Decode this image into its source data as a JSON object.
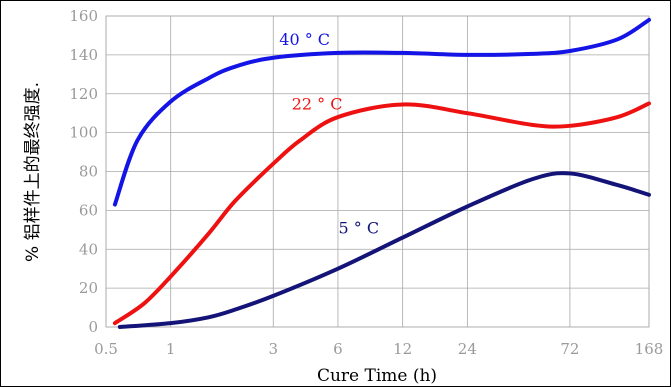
{
  "chart_data": {
    "type": "line",
    "title": "",
    "xlabel": "Cure Time (h)",
    "ylabel": "% 铝样件上的最终强度.",
    "x_scale": "log",
    "xlim": [
      0.5,
      168
    ],
    "ylim": [
      0,
      160
    ],
    "x_ticks": [
      {
        "value": 0.5,
        "label": "0.5"
      },
      {
        "value": 1,
        "label": "1"
      },
      {
        "value": 3,
        "label": "3"
      },
      {
        "value": 6,
        "label": "6"
      },
      {
        "value": 12,
        "label": "12"
      },
      {
        "value": 24,
        "label": "24"
      },
      {
        "value": 72,
        "label": "72"
      },
      {
        "value": 168,
        "label": "168"
      }
    ],
    "y_ticks": [
      {
        "value": 0,
        "label": "0"
      },
      {
        "value": 20,
        "label": "20"
      },
      {
        "value": 40,
        "label": "40"
      },
      {
        "value": 60,
        "label": "60"
      },
      {
        "value": 80,
        "label": "80"
      },
      {
        "value": 100,
        "label": "100"
      },
      {
        "value": 120,
        "label": "120"
      },
      {
        "value": 140,
        "label": "140"
      },
      {
        "value": 160,
        "label": "160"
      }
    ],
    "grid": true,
    "series": [
      {
        "name": "40 ° C",
        "color": "#1414e6",
        "label_at": {
          "x": 4.2,
          "y": 145
        },
        "points": [
          {
            "x": 0.55,
            "y": 63
          },
          {
            "x": 0.7,
            "y": 96
          },
          {
            "x": 1,
            "y": 116
          },
          {
            "x": 1.5,
            "y": 128
          },
          {
            "x": 2,
            "y": 134
          },
          {
            "x": 3,
            "y": 138.5
          },
          {
            "x": 6,
            "y": 141
          },
          {
            "x": 12,
            "y": 141
          },
          {
            "x": 24,
            "y": 140
          },
          {
            "x": 48,
            "y": 140.5
          },
          {
            "x": 72,
            "y": 142
          },
          {
            "x": 120,
            "y": 148
          },
          {
            "x": 168,
            "y": 158
          }
        ]
      },
      {
        "name": "22 ° C",
        "color": "#ee1111",
        "label_at": {
          "x": 4.8,
          "y": 112
        },
        "points": [
          {
            "x": 0.55,
            "y": 2
          },
          {
            "x": 0.75,
            "y": 12
          },
          {
            "x": 1,
            "y": 26
          },
          {
            "x": 1.5,
            "y": 48
          },
          {
            "x": 2,
            "y": 65
          },
          {
            "x": 3,
            "y": 84
          },
          {
            "x": 4,
            "y": 96
          },
          {
            "x": 6,
            "y": 108
          },
          {
            "x": 12,
            "y": 114.5
          },
          {
            "x": 24,
            "y": 110
          },
          {
            "x": 48,
            "y": 104
          },
          {
            "x": 72,
            "y": 103.5
          },
          {
            "x": 120,
            "y": 108
          },
          {
            "x": 168,
            "y": 115
          }
        ]
      },
      {
        "name": "5 ° C",
        "color": "#141478",
        "label_at": {
          "x": 7.5,
          "y": 48
        },
        "points": [
          {
            "x": 0.58,
            "y": 0
          },
          {
            "x": 1,
            "y": 2
          },
          {
            "x": 1.5,
            "y": 5
          },
          {
            "x": 2,
            "y": 9
          },
          {
            "x": 3,
            "y": 16
          },
          {
            "x": 6,
            "y": 30
          },
          {
            "x": 12,
            "y": 46
          },
          {
            "x": 24,
            "y": 62
          },
          {
            "x": 48,
            "y": 76
          },
          {
            "x": 72,
            "y": 79
          },
          {
            "x": 120,
            "y": 73
          },
          {
            "x": 168,
            "y": 68
          }
        ]
      }
    ]
  }
}
